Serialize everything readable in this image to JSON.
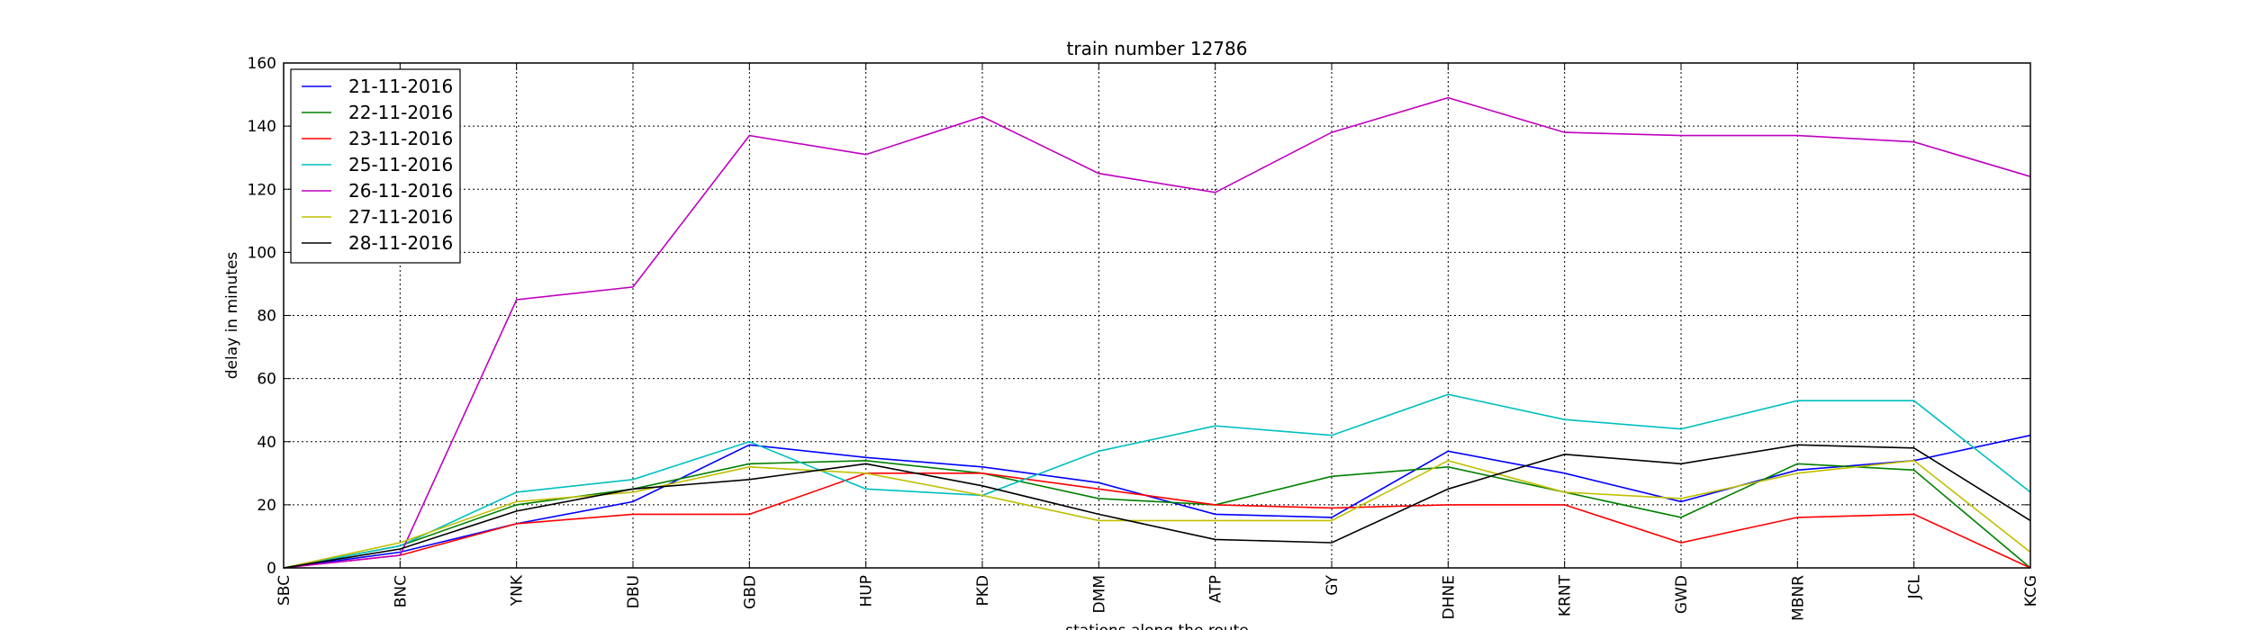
{
  "chart_data": {
    "type": "line",
    "title": "train number 12786",
    "xlabel": "stations along the route",
    "ylabel": "delay in minutes",
    "categories": [
      "SBC",
      "BNC",
      "YNK",
      "DBU",
      "GBD",
      "HUP",
      "PKD",
      "DMM",
      "ATP",
      "GY",
      "DHNE",
      "KRNT",
      "GWD",
      "MBNR",
      "JCL",
      "KCG"
    ],
    "ylim": [
      0,
      160
    ],
    "yticks": [
      0,
      20,
      40,
      60,
      80,
      100,
      120,
      140,
      160
    ],
    "grid": true,
    "legend_position": "top-left",
    "series": [
      {
        "name": "21-11-2016",
        "color": "#0000ff",
        "values": [
          0,
          5,
          14,
          21,
          39,
          35,
          32,
          27,
          17,
          16,
          37,
          30,
          21,
          31,
          34,
          42
        ]
      },
      {
        "name": "22-11-2016",
        "color": "#008000",
        "values": [
          0,
          7,
          20,
          25,
          33,
          34,
          30,
          22,
          20,
          29,
          32,
          24,
          16,
          33,
          31,
          0
        ]
      },
      {
        "name": "23-11-2016",
        "color": "#ff0000",
        "values": [
          0,
          4,
          14,
          17,
          17,
          30,
          30,
          25,
          20,
          19,
          20,
          20,
          8,
          16,
          17,
          0
        ]
      },
      {
        "name": "25-11-2016",
        "color": "#00bfbf",
        "values": [
          0,
          7,
          24,
          28,
          40,
          25,
          23,
          37,
          45,
          42,
          55,
          47,
          44,
          53,
          53,
          24
        ]
      },
      {
        "name": "26-11-2016",
        "color": "#bf00bf",
        "values": [
          0,
          4,
          85,
          89,
          137,
          131,
          143,
          125,
          119,
          138,
          149,
          138,
          137,
          137,
          135,
          124
        ]
      },
      {
        "name": "27-11-2016",
        "color": "#bfbf00",
        "values": [
          0,
          8,
          21,
          24,
          32,
          30,
          23,
          15,
          15,
          15,
          34,
          24,
          22,
          30,
          34,
          5
        ]
      },
      {
        "name": "28-11-2016",
        "color": "#000000",
        "values": [
          0,
          6,
          18,
          25,
          28,
          33,
          26,
          17,
          9,
          8,
          25,
          36,
          33,
          39,
          38,
          15
        ]
      }
    ]
  }
}
